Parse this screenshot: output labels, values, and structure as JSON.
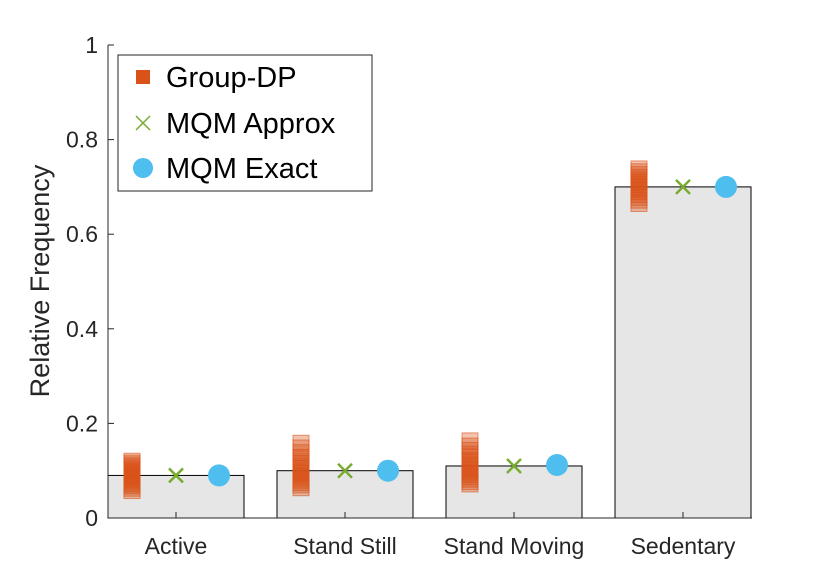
{
  "chart_data": {
    "type": "bar",
    "title": "",
    "xlabel": "",
    "ylabel": "Relative Frequency",
    "ylim": [
      0,
      1
    ],
    "yticks": [
      0,
      0.2,
      0.4,
      0.6,
      0.8,
      1
    ],
    "ytick_labels": [
      "0",
      "0.2",
      "0.4",
      "0.6",
      "0.8",
      "1"
    ],
    "grid": false,
    "legend_position": "top-left",
    "categories": [
      "Active",
      "Stand Still",
      "Stand Moving",
      "Sedentary"
    ],
    "bar_values": [
      0.09,
      0.1,
      0.11,
      0.7
    ],
    "bar_color": "#e6e6e6",
    "series": [
      {
        "name": "Group-DP",
        "marker": "square",
        "color": "#d95319",
        "samples": [
          [
            0.058,
            0.063,
            0.068,
            0.072,
            0.076,
            0.08,
            0.084,
            0.087,
            0.09,
            0.093,
            0.097,
            0.1,
            0.104,
            0.108,
            0.112,
            0.116,
            0.12
          ],
          [
            0.064,
            0.07,
            0.075,
            0.08,
            0.085,
            0.09,
            0.095,
            0.1,
            0.105,
            0.11,
            0.115,
            0.12,
            0.128,
            0.138,
            0.148,
            0.158
          ],
          [
            0.072,
            0.077,
            0.082,
            0.087,
            0.092,
            0.097,
            0.102,
            0.107,
            0.112,
            0.117,
            0.122,
            0.128,
            0.135,
            0.143,
            0.152,
            0.163
          ],
          [
            0.665,
            0.672,
            0.678,
            0.684,
            0.69,
            0.695,
            0.7,
            0.705,
            0.71,
            0.715,
            0.72,
            0.726,
            0.732,
            0.738
          ]
        ]
      },
      {
        "name": "MQM Approx",
        "marker": "x",
        "color": "#77ac30",
        "values": [
          0.09,
          0.1,
          0.11,
          0.7
        ]
      },
      {
        "name": "MQM Exact",
        "marker": "circle",
        "color": "#4dbeee",
        "values": [
          0.09,
          0.1,
          0.112,
          0.7
        ]
      }
    ]
  }
}
